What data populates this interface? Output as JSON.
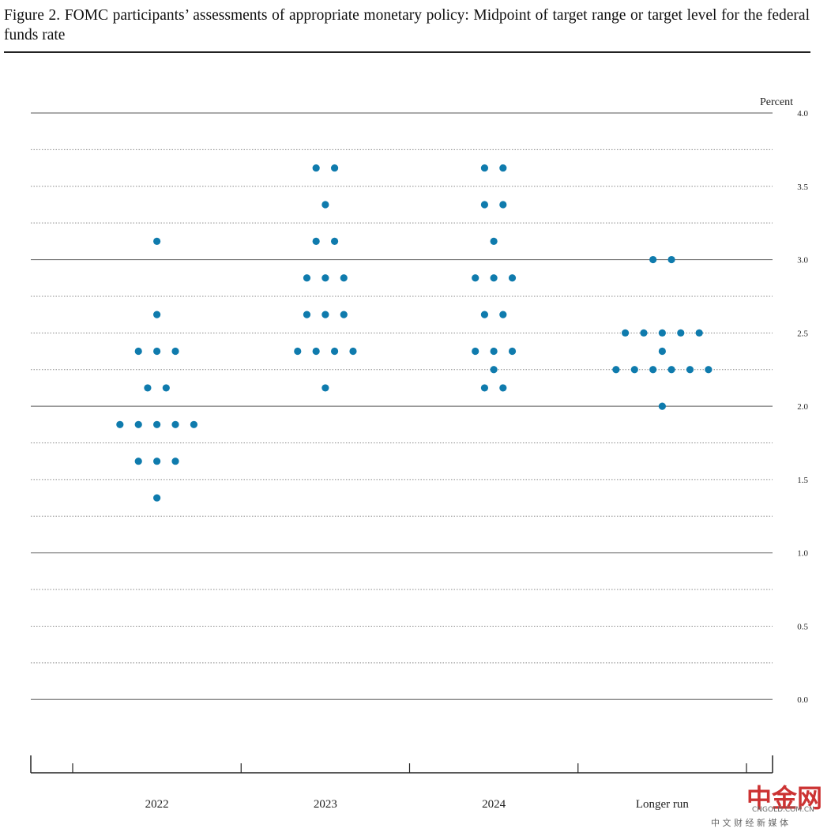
{
  "chart_data": {
    "type": "dot",
    "title": "Figure 2.  FOMC participants’ assessments of appropriate monetary policy: Midpoint of target range or target level for the federal funds rate",
    "y_label": "Percent",
    "categories": [
      "2022",
      "2023",
      "2024",
      "Longer run"
    ],
    "values": [
      [
        3.125,
        2.625,
        2.375,
        2.375,
        2.375,
        2.125,
        2.125,
        1.875,
        1.875,
        1.875,
        1.875,
        1.875,
        1.625,
        1.625,
        1.625,
        1.375
      ],
      [
        3.625,
        3.625,
        3.375,
        3.125,
        3.125,
        2.875,
        2.875,
        2.875,
        2.625,
        2.625,
        2.625,
        2.375,
        2.375,
        2.375,
        2.375,
        2.125
      ],
      [
        3.625,
        3.625,
        3.375,
        3.375,
        3.125,
        2.875,
        2.875,
        2.875,
        2.625,
        2.625,
        2.375,
        2.375,
        2.375,
        2.25,
        2.125,
        2.125
      ],
      [
        3.0,
        3.0,
        2.5,
        2.5,
        2.5,
        2.5,
        2.5,
        2.375,
        2.25,
        2.25,
        2.25,
        2.25,
        2.25,
        2.25,
        2.0
      ]
    ],
    "color": "#0f7bad",
    "ylim": [
      -0.5,
      4.0
    ],
    "yticks": [
      {
        "value": 0,
        "label": "0.0"
      },
      {
        "value": 0.5,
        "label": "0.5"
      },
      {
        "value": 1,
        "label": "1.0"
      },
      {
        "value": 1.5,
        "label": "1.5"
      },
      {
        "value": 2,
        "label": "2.0"
      },
      {
        "value": 2.5,
        "label": "2.5"
      },
      {
        "value": 3,
        "label": "3.0"
      },
      {
        "value": 3.5,
        "label": "3.5"
      },
      {
        "value": 4,
        "label": "4.0"
      }
    ],
    "minor_yticks": [
      0.25,
      0.75,
      1.25,
      1.75,
      2.25,
      2.75,
      3.25,
      3.75
    ],
    "grid": true
  },
  "watermark": {
    "logo": "中金网",
    "url": "CNGOLD.COM.CN",
    "slogan": "中 文 财 经 新 媒 体"
  }
}
